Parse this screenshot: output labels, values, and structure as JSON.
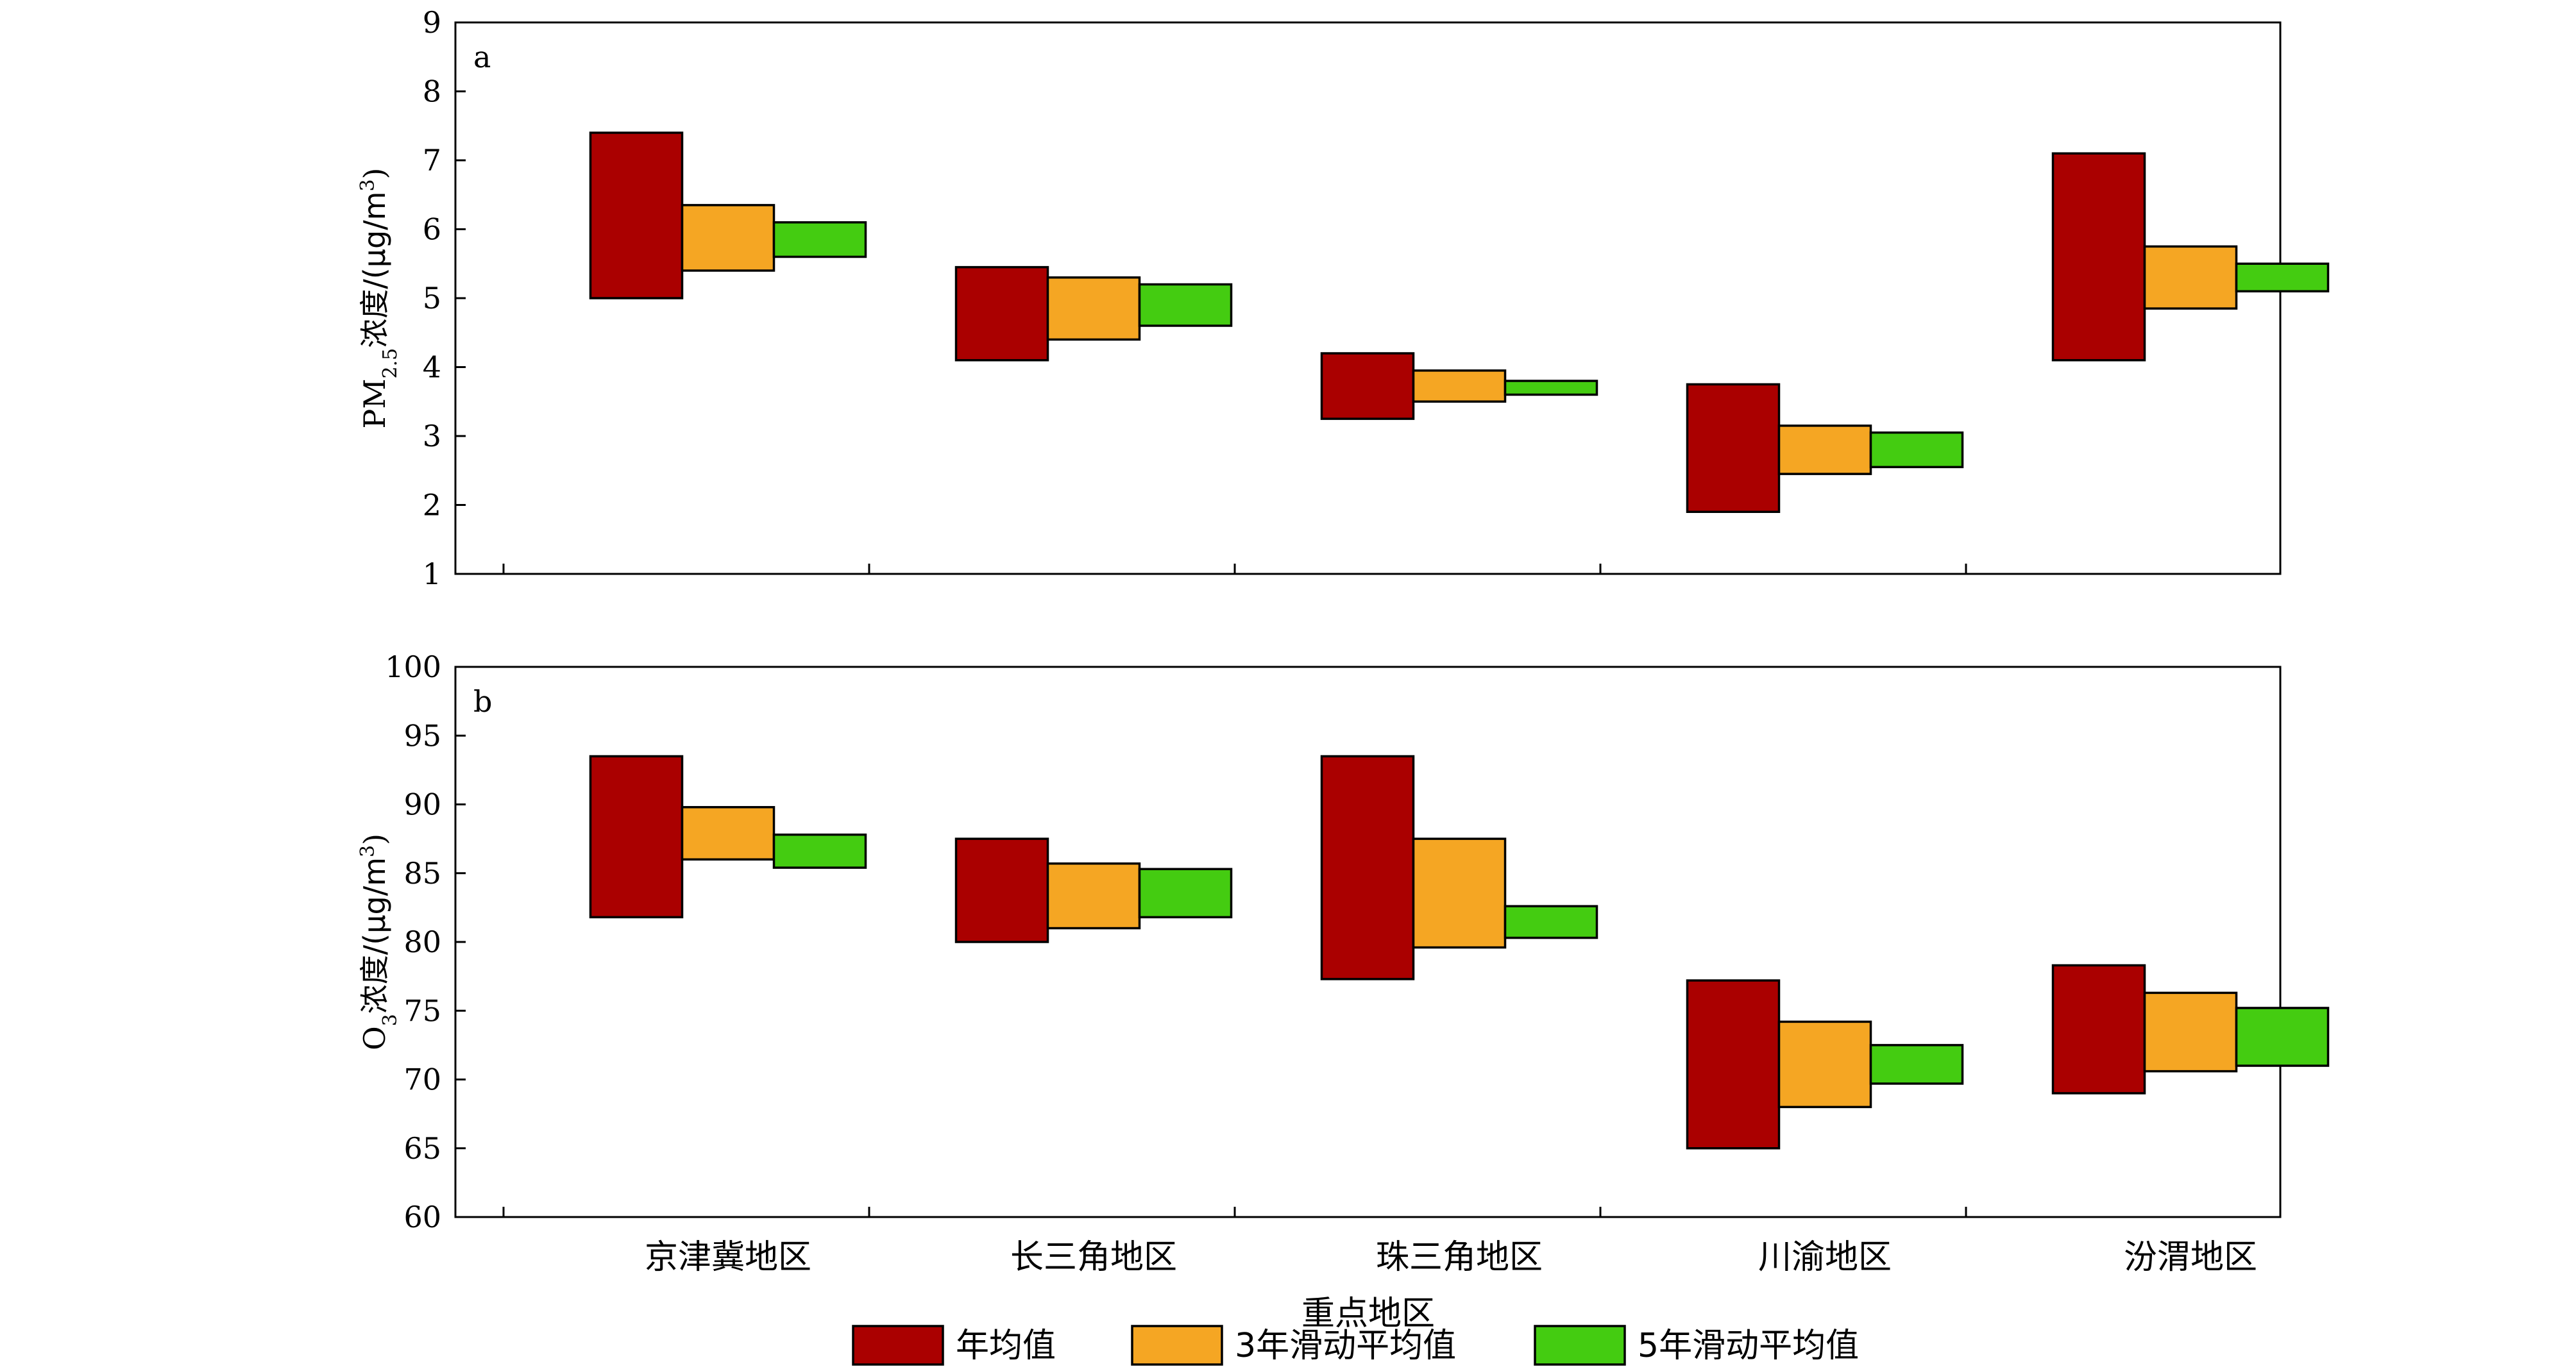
{
  "chart_data": [
    {
      "type": "floating-bar",
      "panel_label": "a",
      "ylabel_main": "PM",
      "ylabel_sub": "2.5",
      "ylabel_rest": "浓度/(μg/m",
      "ylabel_sup": "3",
      "ylabel_end": ")",
      "ylim": [
        1,
        9
      ],
      "yticks": [
        "1",
        "2",
        "3",
        "4",
        "5",
        "6",
        "7",
        "8",
        "9"
      ],
      "categories": [
        "京津冀地区",
        "长三角地区",
        "珠三角地区",
        "川渝地区",
        "汾渭地区"
      ],
      "series": [
        {
          "name": "年均值",
          "color": "#AA0000",
          "low": [
            5.0,
            4.1,
            3.25,
            1.9,
            4.1
          ],
          "high": [
            7.4,
            5.45,
            4.2,
            3.75,
            7.1
          ]
        },
        {
          "name": "3年滑动平均值",
          "color": "#F5A623",
          "low": [
            5.4,
            4.4,
            3.5,
            2.45,
            4.85
          ],
          "high": [
            6.35,
            5.3,
            3.95,
            3.15,
            5.75
          ]
        },
        {
          "name": "5年滑动平均值",
          "color": "#44CC11",
          "low": [
            5.6,
            4.6,
            3.6,
            2.55,
            5.1
          ],
          "high": [
            6.1,
            5.2,
            3.8,
            3.05,
            5.5
          ]
        }
      ]
    },
    {
      "type": "floating-bar",
      "panel_label": "b",
      "ylabel_main": "O",
      "ylabel_sub": "3",
      "ylabel_rest": "浓度/(μg/m",
      "ylabel_sup": "3",
      "ylabel_end": ")",
      "ylim": [
        60,
        100
      ],
      "yticks": [
        "60",
        "65",
        "70",
        "75",
        "80",
        "85",
        "90",
        "95",
        "100"
      ],
      "categories": [
        "京津冀地区",
        "长三角地区",
        "珠三角地区",
        "川渝地区",
        "汾渭地区"
      ],
      "xlabel": "重点地区",
      "series": [
        {
          "name": "年均值",
          "color": "#AA0000",
          "low": [
            81.8,
            80.0,
            77.3,
            65.0,
            69.0
          ],
          "high": [
            93.5,
            87.5,
            93.5,
            77.2,
            78.3
          ]
        },
        {
          "name": "3年滑动平均值",
          "color": "#F5A623",
          "low": [
            86.0,
            81.0,
            79.6,
            68.0,
            70.6
          ],
          "high": [
            89.8,
            85.7,
            87.5,
            74.2,
            76.3
          ]
        },
        {
          "name": "5年滑动平均值",
          "color": "#44CC11",
          "low": [
            85.4,
            81.8,
            80.3,
            69.7,
            71.0
          ],
          "high": [
            87.8,
            85.3,
            82.6,
            72.5,
            75.2
          ]
        }
      ]
    }
  ],
  "legend": {
    "items": [
      {
        "label": "年均值",
        "color": "#AA0000"
      },
      {
        "label": "3年滑动平均值",
        "color": "#F5A623"
      },
      {
        "label": "5年滑动平均值",
        "color": "#44CC11"
      }
    ]
  }
}
